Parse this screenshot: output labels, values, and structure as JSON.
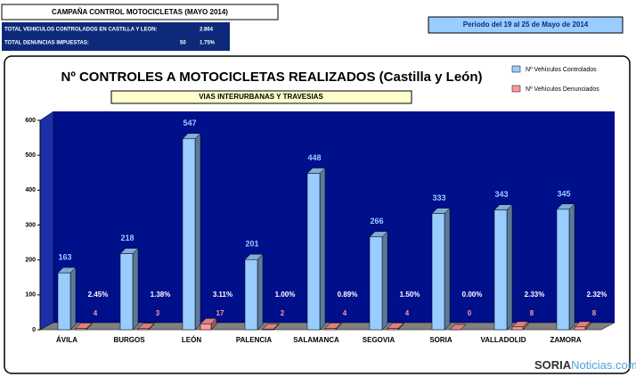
{
  "header": {
    "campaign": "CAMPAÑA CONTROL MOTOCICLETAS (MAYO 2014)",
    "total_controlled_label": "TOTAL VEHICULOS CONTROLADOS EN CASTILLA Y LEON:",
    "total_controlled": "2.864",
    "total_fines_label": "TOTAL DENUNCIAS IMPUESTAS:",
    "total_fines": "50",
    "total_fines_rate": "1.75%",
    "period": "Periodo del 19 al 25 de Mayo de 2014"
  },
  "chart_data": {
    "type": "bar",
    "title": "Nº CONTROLES A MOTOCICLETAS REALIZADOS (Castilla y León)",
    "subtitle": "VIAS INTERURBANAS  Y TRAVESIAS",
    "categories": [
      "ÁVILA",
      "BURGOS",
      "LEÓN",
      "PALENCIA",
      "SALAMANCA",
      "SEGOVIA",
      "SORIA",
      "VALLADOLID",
      "ZAMORA"
    ],
    "series": [
      {
        "name": "Nº Vehículos Controlados",
        "color": "#99ccff",
        "values": [
          163,
          218,
          547,
          201,
          448,
          266,
          333,
          343,
          345
        ]
      },
      {
        "name": "Nº Vehículos Denunciados",
        "color": "#ff9999",
        "values": [
          4,
          3,
          17,
          2,
          4,
          4,
          0,
          8,
          8
        ]
      }
    ],
    "rate_labels": [
      "2.45%",
      "1.38%",
      "3.11%",
      "1.00%",
      "0.89%",
      "1.50%",
      "0.00%",
      "2.33%",
      "2.32%"
    ],
    "ylim": [
      0,
      600
    ],
    "yticks": [
      0,
      100,
      200,
      300,
      400,
      500,
      600
    ],
    "grid": false,
    "legend": "top-right"
  },
  "watermark": {
    "brand": "SORIA",
    "brand2": "Noticias",
    ".com": ".com"
  }
}
